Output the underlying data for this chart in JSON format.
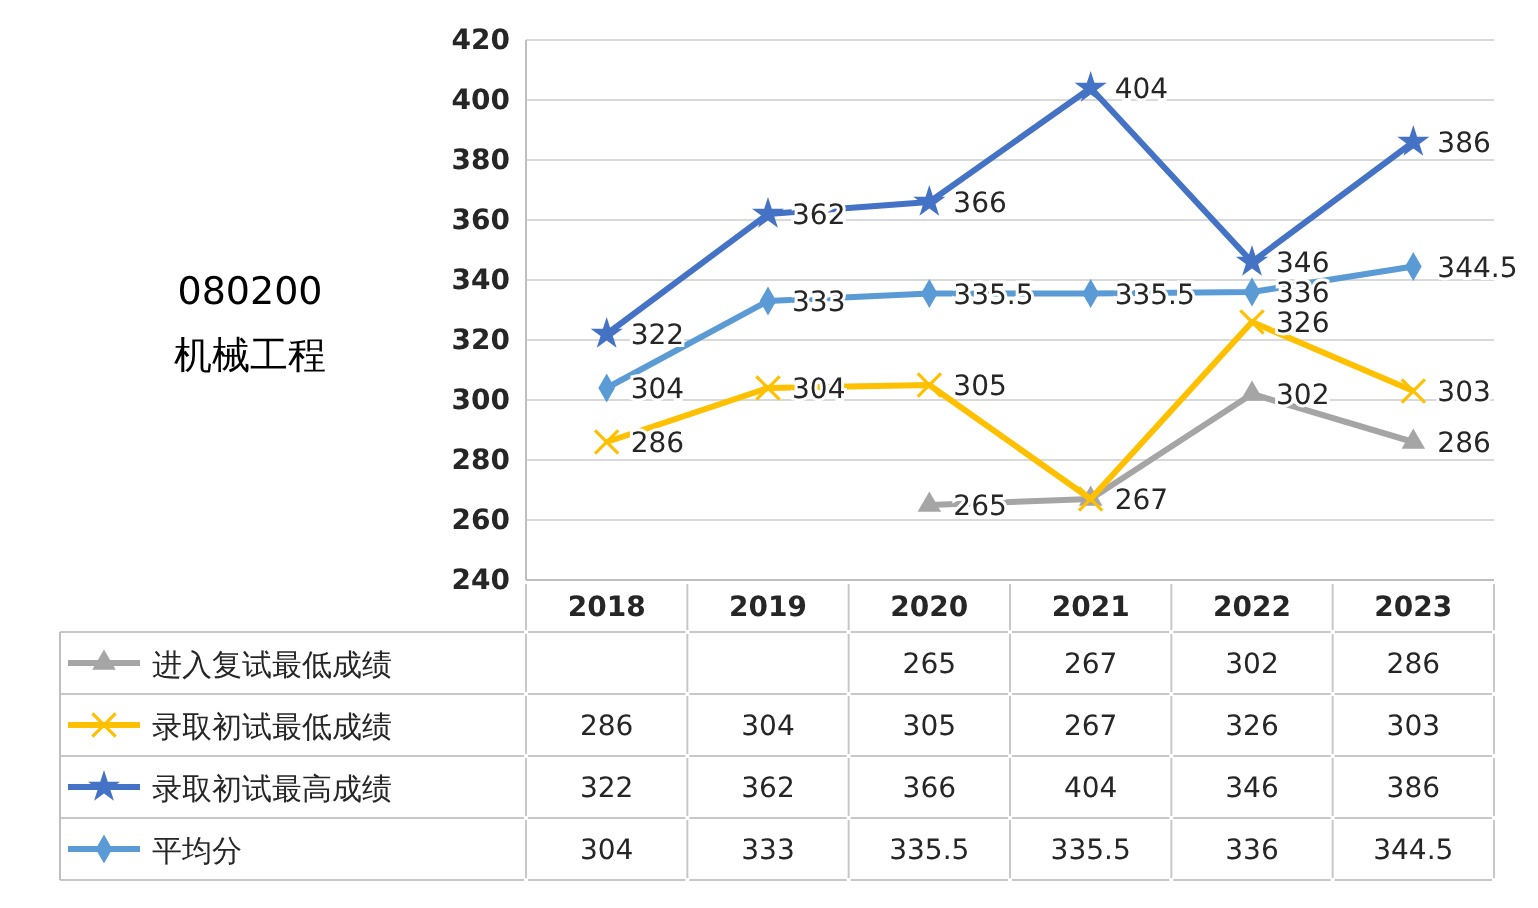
{
  "chart_data": {
    "type": "line",
    "title": "080200",
    "subtitle": "机械工程",
    "categories": [
      "2018",
      "2019",
      "2020",
      "2021",
      "2022",
      "2023"
    ],
    "series": [
      {
        "name": "进入复试最低成绩",
        "color": "#a5a5a5",
        "marker": "triangle",
        "values": [
          null,
          null,
          265,
          267,
          302,
          286
        ]
      },
      {
        "name": "录取初试最低成绩",
        "color": "#ffc000",
        "marker": "cross",
        "values": [
          286,
          304,
          305,
          267,
          326,
          303
        ]
      },
      {
        "name": "录取初试最高成绩",
        "color": "#4472c4",
        "marker": "star",
        "values": [
          322,
          362,
          366,
          404,
          346,
          386
        ]
      },
      {
        "name": "平均分",
        "color": "#5b9bd5",
        "marker": "diamond",
        "values": [
          304,
          333,
          335.5,
          335.5,
          336,
          344.5
        ]
      }
    ],
    "annotations": [
      {
        "text": "265",
        "x": "2020",
        "y": 265
      },
      {
        "text": "267",
        "x": "2021",
        "y": 267
      },
      {
        "text": "302",
        "x": "2022",
        "y": 302
      },
      {
        "text": "286",
        "x": "2023",
        "y": 286
      },
      {
        "text": "286",
        "x": "2018",
        "y": 286
      },
      {
        "text": "304",
        "x": "2019",
        "y": 304
      },
      {
        "text": "305",
        "x": "2020",
        "y": 305
      },
      {
        "text": "326",
        "x": "2022",
        "y": 326
      },
      {
        "text": "303",
        "x": "2023",
        "y": 303
      },
      {
        "text": "322",
        "x": "2018",
        "y": 322
      },
      {
        "text": "362",
        "x": "2019",
        "y": 362
      },
      {
        "text": "366",
        "x": "2020",
        "y": 366
      },
      {
        "text": "404",
        "x": "2021",
        "y": 404
      },
      {
        "text": "346",
        "x": "2022",
        "y": 346
      },
      {
        "text": "386",
        "x": "2023",
        "y": 386
      },
      {
        "text": "304",
        "x": "2018",
        "y": 304
      },
      {
        "text": "333",
        "x": "2019",
        "y": 333
      },
      {
        "text": "335.5",
        "x": "2020",
        "y": 335.5
      },
      {
        "text": "335.5",
        "x": "2021",
        "y": 335.5
      },
      {
        "text": "336",
        "x": "2022",
        "y": 336
      },
      {
        "text": "344.5",
        "x": "2023",
        "y": 344.5
      }
    ],
    "ylim": [
      240,
      420
    ],
    "yticks": [
      240,
      260,
      280,
      300,
      320,
      340,
      360,
      380,
      400,
      420
    ],
    "grid": "y",
    "legend": "bottom",
    "data_labels": true
  }
}
